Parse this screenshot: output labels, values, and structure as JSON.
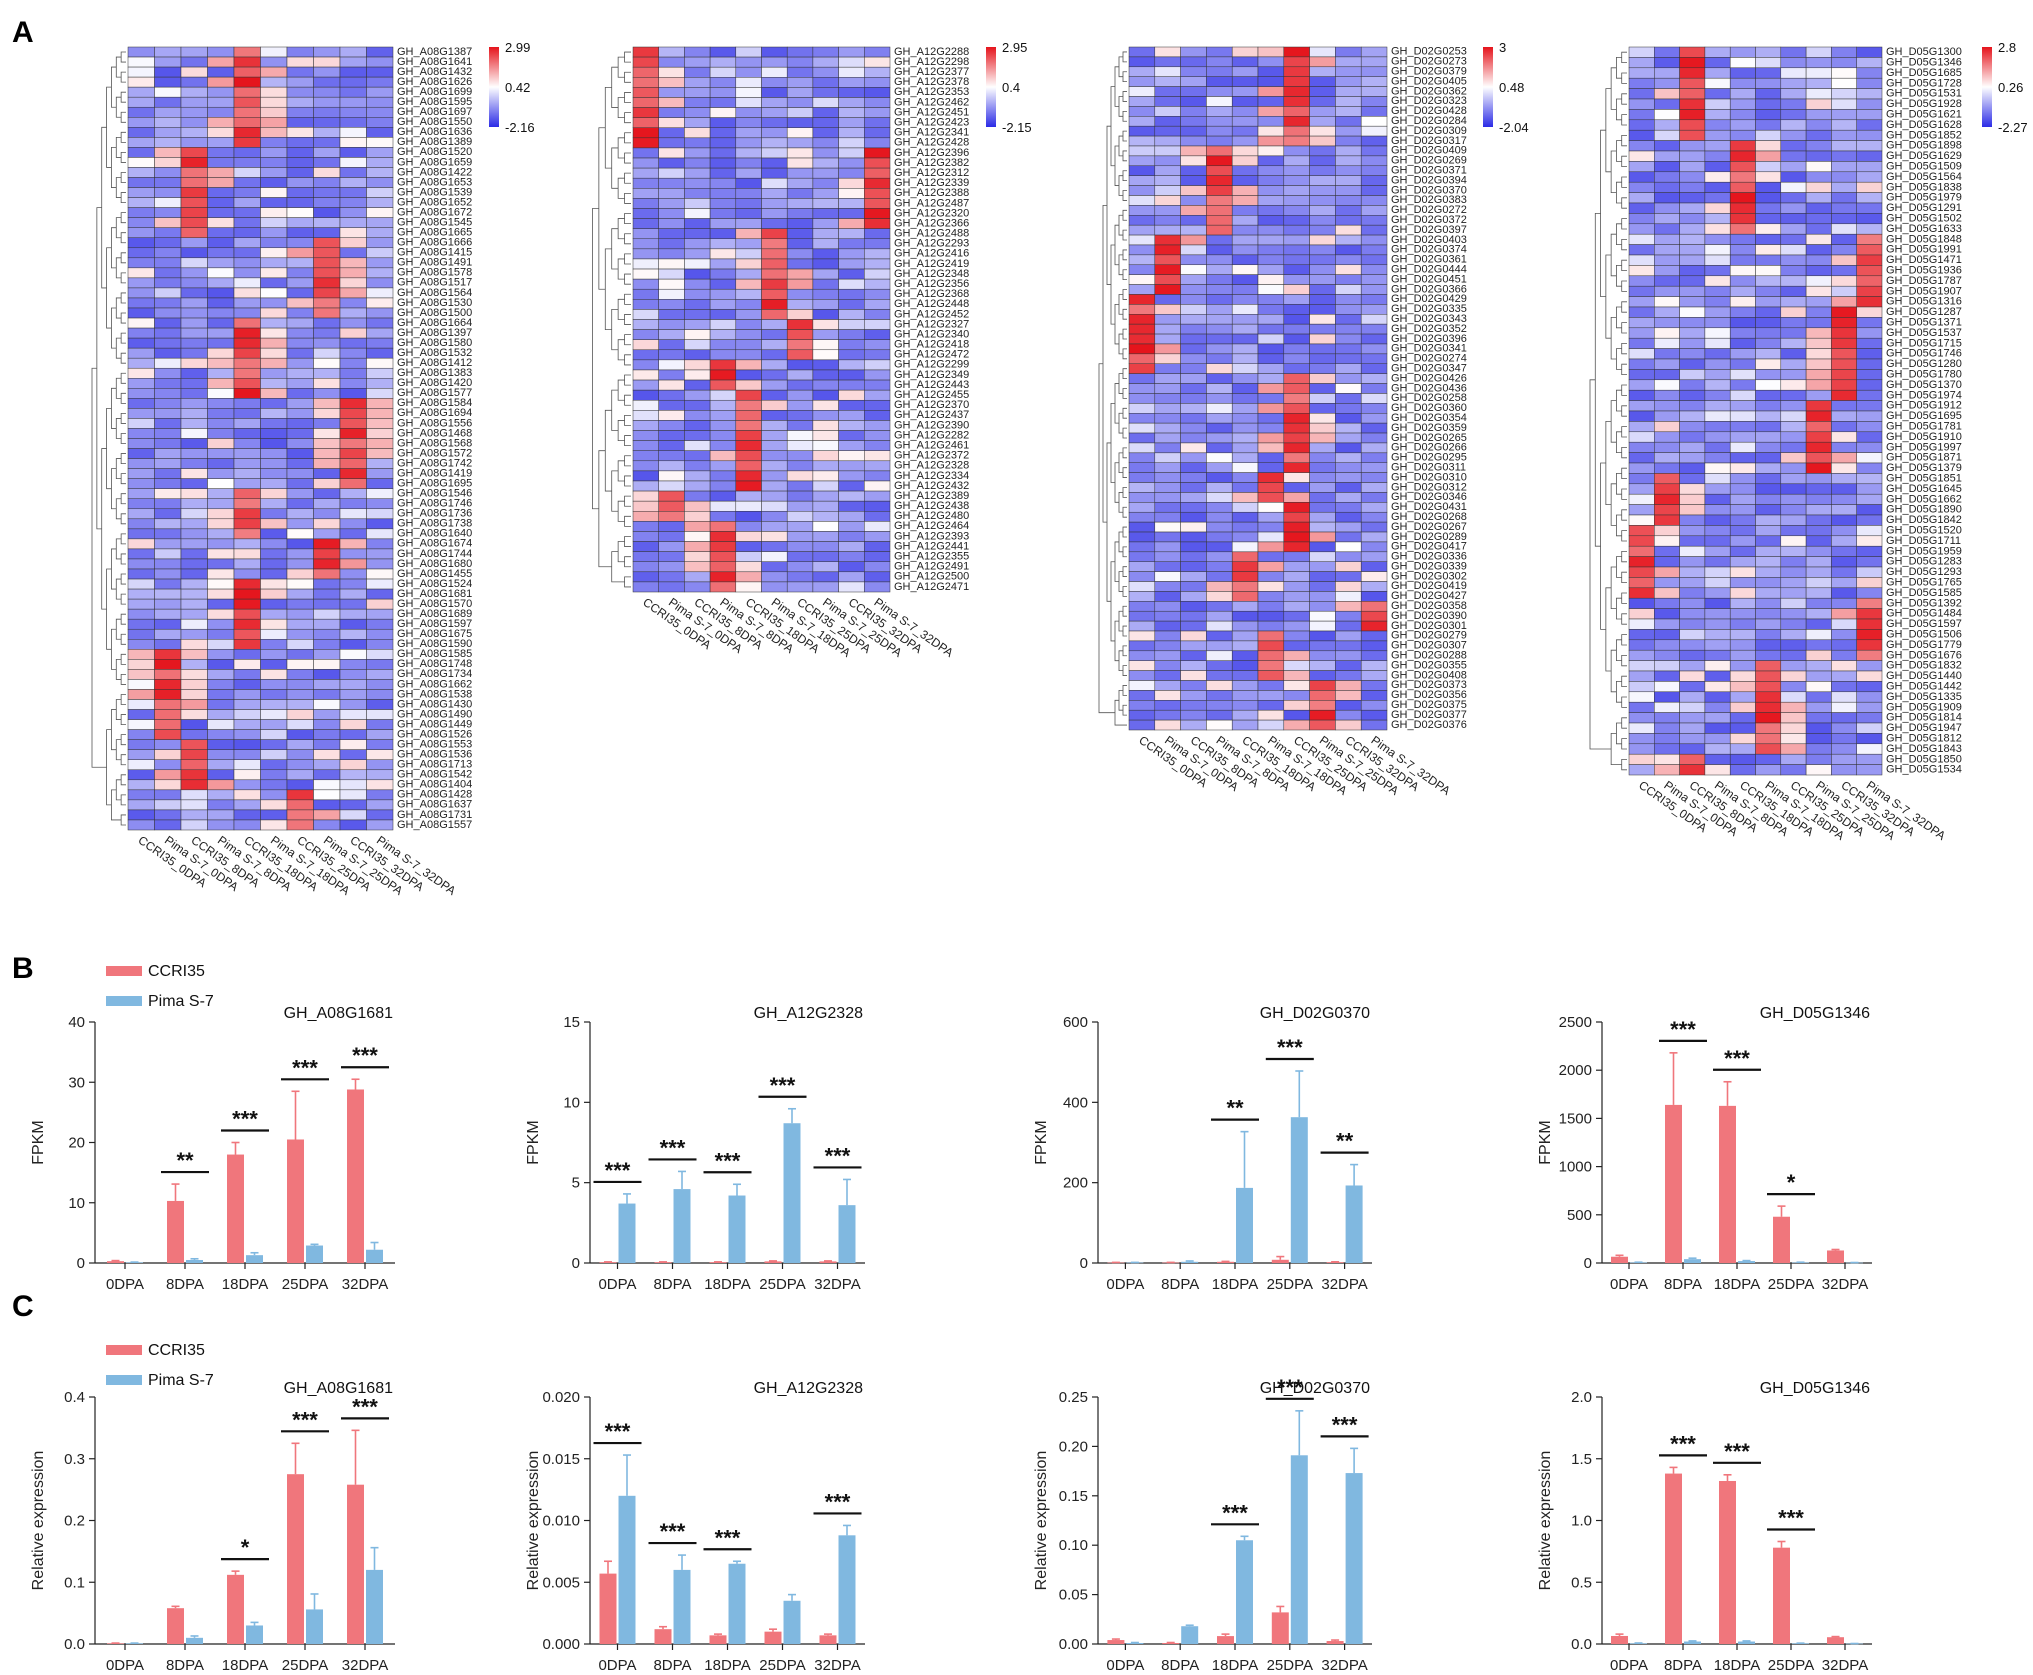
{
  "figure": {
    "panels": [
      "A",
      "B",
      "C"
    ]
  },
  "colors": {
    "ccri35": "#f0767c",
    "pima": "#80b8e0",
    "heat_low": "#2b2be6",
    "heat_mid": "#ffffff",
    "heat_high": "#e5141c"
  },
  "legend": {
    "ccri35": "CCRI35",
    "pima": "Pima S-7"
  },
  "conditions": [
    "CCRI35_0DPA",
    "Pima S-7_0DPA",
    "CCRI35_8DPA",
    "Pima S-7_8DPA",
    "CCRI35_18DPA",
    "Pima S-7_18DPA",
    "CCRI35_25DPA",
    "Pima S-7_25DPA",
    "CCRI35_32DPA",
    "Pima S-7_32DPA"
  ],
  "heatmaps": [
    {
      "scale": {
        "max": "2.99",
        "mid": "0.42",
        "min": "-2.16"
      },
      "genes": [
        "GH_A08G1387",
        "GH_A08G1641",
        "GH_A08G1432",
        "GH_A08G1626",
        "GH_A08G1699",
        "GH_A08G1595",
        "GH_A08G1697",
        "GH_A08G1550",
        "GH_A08G1636",
        "GH_A08G1389",
        "GH_A08G1520",
        "GH_A08G1659",
        "GH_A08G1422",
        "GH_A08G1653",
        "GH_A08G1539",
        "GH_A08G1652",
        "GH_A08G1672",
        "GH_A08G1545",
        "GH_A08G1665",
        "GH_A08G1666",
        "GH_A08G1415",
        "GH_A08G1491",
        "GH_A08G1578",
        "GH_A08G1517",
        "GH_A08G1564",
        "GH_A08G1530",
        "GH_A08G1500",
        "GH_A08G1664",
        "GH_A08G1397",
        "GH_A08G1580",
        "GH_A08G1532",
        "GH_A08G1412",
        "GH_A08G1383",
        "GH_A08G1420",
        "GH_A08G1577",
        "GH_A08G1584",
        "GH_A08G1694",
        "GH_A08G1556",
        "GH_A08G1468",
        "GH_A08G1568",
        "GH_A08G1572",
        "GH_A08G1742",
        "GH_A08G1419",
        "GH_A08G1695",
        "GH_A08G1546",
        "GH_A08G1746",
        "GH_A08G1736",
        "GH_A08G1738",
        "GH_A08G1640",
        "GH_A08G1674",
        "GH_A08G1744",
        "GH_A08G1680",
        "GH_A08G1455",
        "GH_A08G1524",
        "GH_A08G1681",
        "GH_A08G1570",
        "GH_A08G1689",
        "GH_A08G1597",
        "GH_A08G1675",
        "GH_A08G1590",
        "GH_A08G1585",
        "GH_A08G1748",
        "GH_A08G1734",
        "GH_A08G1662",
        "GH_A08G1538",
        "GH_A08G1430",
        "GH_A08G1490",
        "GH_A08G1449",
        "GH_A08G1526",
        "GH_A08G1553",
        "GH_A08G1536",
        "GH_A08G1713",
        "GH_A08G1542",
        "GH_A08G1404",
        "GH_A08G1428",
        "GH_A08G1637",
        "GH_A08G1731",
        "GH_A08G1557"
      ]
    },
    {
      "scale": {
        "max": "2.95",
        "mid": "0.4",
        "min": "-2.15"
      },
      "genes": [
        "GH_A12G2288",
        "GH_A12G2298",
        "GH_A12G2377",
        "GH_A12G2378",
        "GH_A12G2353",
        "GH_A12G2462",
        "GH_A12G2451",
        "GH_A12G2423",
        "GH_A12G2341",
        "GH_A12G2428",
        "GH_A12G2396",
        "GH_A12G2382",
        "GH_A12G2312",
        "GH_A12G2339",
        "GH_A12G2388",
        "GH_A12G2487",
        "GH_A12G2320",
        "GH_A12G2366",
        "GH_A12G2488",
        "GH_A12G2293",
        "GH_A12G2416",
        "GH_A12G2419",
        "GH_A12G2348",
        "GH_A12G2356",
        "GH_A12G2368",
        "GH_A12G2448",
        "GH_A12G2452",
        "GH_A12G2327",
        "GH_A12G2340",
        "GH_A12G2418",
        "GH_A12G2472",
        "GH_A12G2299",
        "GH_A12G2349",
        "GH_A12G2443",
        "GH_A12G2455",
        "GH_A12G2370",
        "GH_A12G2437",
        "GH_A12G2390",
        "GH_A12G2282",
        "GH_A12G2461",
        "GH_A12G2372",
        "GH_A12G2328",
        "GH_A12G2334",
        "GH_A12G2432",
        "GH_A12G2389",
        "GH_A12G2438",
        "GH_A12G2480",
        "GH_A12G2464",
        "GH_A12G2393",
        "GH_A12G2441",
        "GH_A12G2355",
        "GH_A12G2491",
        "GH_A12G2500",
        "GH_A12G2471"
      ]
    },
    {
      "scale": {
        "max": "3",
        "mid": "0.48",
        "min": "-2.04"
      },
      "genes": [
        "GH_D02G0253",
        "GH_D02G0273",
        "GH_D02G0379",
        "GH_D02G0405",
        "GH_D02G0362",
        "GH_D02G0323",
        "GH_D02G0428",
        "GH_D02G0284",
        "GH_D02G0309",
        "GH_D02G0317",
        "GH_D02G0409",
        "GH_D02G0269",
        "GH_D02G0371",
        "GH_D02G0394",
        "GH_D02G0370",
        "GH_D02G0383",
        "GH_D02G0272",
        "GH_D02G0372",
        "GH_D02G0397",
        "GH_D02G0403",
        "GH_D02G0374",
        "GH_D02G0361",
        "GH_D02G0444",
        "GH_D02G0451",
        "GH_D02G0366",
        "GH_D02G0429",
        "GH_D02G0335",
        "GH_D02G0343",
        "GH_D02G0352",
        "GH_D02G0396",
        "GH_D02G0341",
        "GH_D02G0274",
        "GH_D02G0347",
        "GH_D02G0426",
        "GH_D02G0436",
        "GH_D02G0258",
        "GH_D02G0360",
        "GH_D02G0354",
        "GH_D02G0359",
        "GH_D02G0265",
        "GH_D02G0266",
        "GH_D02G0295",
        "GH_D02G0311",
        "GH_D02G0310",
        "GH_D02G0312",
        "GH_D02G0346",
        "GH_D02G0431",
        "GH_D02G0268",
        "GH_D02G0267",
        "GH_D02G0289",
        "GH_D02G0417",
        "GH_D02G0336",
        "GH_D02G0339",
        "GH_D02G0302",
        "GH_D02G0419",
        "GH_D02G0427",
        "GH_D02G0358",
        "GH_D02G0390",
        "GH_D02G0301",
        "GH_D02G0279",
        "GH_D02G0307",
        "GH_D02G0288",
        "GH_D02G0355",
        "GH_D02G0408",
        "GH_D02G0373",
        "GH_D02G0356",
        "GH_D02G0375",
        "GH_D02G0377",
        "GH_D02G0376"
      ]
    },
    {
      "scale": {
        "max": "2.8",
        "mid": "0.26",
        "min": "-2.27"
      },
      "genes": [
        "GH_D05G1300",
        "GH_D05G1346",
        "GH_D05G1685",
        "GH_D05G1728",
        "GH_D05G1531",
        "GH_D05G1928",
        "GH_D05G1621",
        "GH_D05G1628",
        "GH_D05G1852",
        "GH_D05G1898",
        "GH_D05G1629",
        "GH_D05G1509",
        "GH_D05G1564",
        "GH_D05G1838",
        "GH_D05G1979",
        "GH_D05G1291",
        "GH_D05G1502",
        "GH_D05G1633",
        "GH_D05G1848",
        "GH_D05G1991",
        "GH_D05G1471",
        "GH_D05G1936",
        "GH_D05G1787",
        "GH_D05G1907",
        "GH_D05G1316",
        "GH_D05G1287",
        "GH_D05G1371",
        "GH_D05G1537",
        "GH_D05G1715",
        "GH_D05G1746",
        "GH_D05G1280",
        "GH_D05G1780",
        "GH_D05G1370",
        "GH_D05G1974",
        "GH_D05G1912",
        "GH_D05G1695",
        "GH_D05G1781",
        "GH_D05G1910",
        "GH_D05G1997",
        "GH_D05G1871",
        "GH_D05G1379",
        "GH_D05G1851",
        "GH_D05G1645",
        "GH_D05G1662",
        "GH_D05G1890",
        "GH_D05G1842",
        "GH_D05G1520",
        "GH_D05G1711",
        "GH_D05G1959",
        "GH_D05G1283",
        "GH_D05G1293",
        "GH_D05G1765",
        "GH_D05G1585",
        "GH_D05G1392",
        "GH_D05G1484",
        "GH_D05G1597",
        "GH_D05G1506",
        "GH_D05G1779",
        "GH_D05G1676",
        "GH_D05G1832",
        "GH_D05G1440",
        "GH_D05G1442",
        "GH_D05G1335",
        "GH_D05G1909",
        "GH_D05G1814",
        "GH_D05G1947",
        "GH_D05G1812",
        "GH_D05G1843",
        "GH_D05G1850",
        "GH_D05G1534"
      ]
    }
  ],
  "chart_data": [
    {
      "id": "B1",
      "type": "bar",
      "title": "GH_A08G1681",
      "ylabel": "FPKM",
      "categories": [
        "0DPA",
        "8DPA",
        "18DPA",
        "25DPA",
        "32DPA"
      ],
      "ylim": [
        0,
        40
      ],
      "yticks": [
        "0",
        "10",
        "20",
        "30",
        "40"
      ],
      "series": [
        {
          "name": "CCRI35",
          "values": [
            0.3,
            10.3,
            18.0,
            20.5,
            28.8
          ],
          "errors": [
            0.1,
            2.8,
            2.0,
            8.0,
            1.7
          ]
        },
        {
          "name": "Pima S-7",
          "values": [
            0.1,
            0.5,
            1.3,
            2.9,
            2.2
          ],
          "errors": [
            0.05,
            0.2,
            0.4,
            0.2,
            1.2
          ]
        }
      ],
      "significance": [
        "",
        "**",
        "***",
        "***",
        "***"
      ]
    },
    {
      "id": "B2",
      "type": "bar",
      "title": "GH_A12G2328",
      "ylabel": "FPKM",
      "categories": [
        "0DPA",
        "8DPA",
        "18DPA",
        "25DPA",
        "32DPA"
      ],
      "ylim": [
        0,
        15
      ],
      "yticks": [
        "0",
        "5",
        "10",
        "15"
      ],
      "series": [
        {
          "name": "CCRI35",
          "values": [
            0.05,
            0.05,
            0.05,
            0.1,
            0.1
          ],
          "errors": [
            0.02,
            0.02,
            0.02,
            0.03,
            0.03
          ]
        },
        {
          "name": "Pima S-7",
          "values": [
            3.7,
            4.6,
            4.2,
            8.7,
            3.6
          ],
          "errors": [
            0.6,
            1.1,
            0.7,
            0.9,
            1.6
          ]
        }
      ],
      "significance": [
        "***",
        "***",
        "***",
        "***",
        "***"
      ]
    },
    {
      "id": "B3",
      "type": "bar",
      "title": "GH_D02G0370",
      "ylabel": "FPKM",
      "categories": [
        "0DPA",
        "8DPA",
        "18DPA",
        "25DPA",
        "32DPA"
      ],
      "ylim": [
        0,
        600
      ],
      "yticks": [
        "0",
        "200",
        "400",
        "600"
      ],
      "series": [
        {
          "name": "CCRI35",
          "values": [
            1,
            1,
            3,
            8,
            2
          ],
          "errors": [
            0.5,
            0.5,
            1,
            8,
            1
          ]
        },
        {
          "name": "Pima S-7",
          "values": [
            1,
            3,
            187,
            363,
            193
          ],
          "errors": [
            0.5,
            2,
            140,
            115,
            52
          ]
        }
      ],
      "significance": [
        "",
        "",
        "**",
        "***",
        "**"
      ]
    },
    {
      "id": "B4",
      "type": "bar",
      "title": "GH_D05G1346",
      "ylabel": "FPKM",
      "categories": [
        "0DPA",
        "8DPA",
        "18DPA",
        "25DPA",
        "32DPA"
      ],
      "ylim": [
        0,
        2500
      ],
      "yticks": [
        "0",
        "500",
        "1000",
        "1500",
        "2000",
        "2500"
      ],
      "series": [
        {
          "name": "CCRI35",
          "values": [
            65,
            1640,
            1630,
            480,
            130
          ],
          "errors": [
            15,
            540,
            250,
            110,
            10
          ]
        },
        {
          "name": "Pima S-7",
          "values": [
            5,
            40,
            20,
            5,
            3
          ],
          "errors": [
            3,
            10,
            5,
            3,
            2
          ]
        }
      ],
      "significance": [
        "",
        "***",
        "***",
        "*",
        ""
      ]
    },
    {
      "id": "C1",
      "type": "bar",
      "title": "GH_A08G1681",
      "ylabel": "Relative expression",
      "categories": [
        "0DPA",
        "8DPA",
        "18DPA",
        "25DPA",
        "32DPA"
      ],
      "ylim": [
        0,
        0.4
      ],
      "yticks": [
        "0.0",
        "0.1",
        "0.2",
        "0.3",
        "0.4"
      ],
      "series": [
        {
          "name": "CCRI35",
          "values": [
            0.001,
            0.058,
            0.112,
            0.275,
            0.258
          ],
          "errors": [
            0.0005,
            0.003,
            0.006,
            0.05,
            0.088
          ]
        },
        {
          "name": "Pima S-7",
          "values": [
            0.001,
            0.01,
            0.03,
            0.056,
            0.12
          ],
          "errors": [
            0.0005,
            0.003,
            0.005,
            0.025,
            0.036
          ]
        }
      ],
      "significance": [
        "",
        "",
        "*",
        "***",
        "***"
      ]
    },
    {
      "id": "C2",
      "type": "bar",
      "title": "GH_A12G2328",
      "ylabel": "Relative expression",
      "categories": [
        "0DPA",
        "8DPA",
        "18DPA",
        "25DPA",
        "32DPA"
      ],
      "ylim": [
        0,
        0.02
      ],
      "yticks": [
        "0.000",
        "0.005",
        "0.010",
        "0.015",
        "0.020"
      ],
      "series": [
        {
          "name": "CCRI35",
          "values": [
            0.0057,
            0.0012,
            0.0007,
            0.001,
            0.0007
          ],
          "errors": [
            0.001,
            0.0002,
            0.0001,
            0.0002,
            0.0001
          ]
        },
        {
          "name": "Pima S-7",
          "values": [
            0.012,
            0.006,
            0.0065,
            0.0035,
            0.0088
          ],
          "errors": [
            0.0033,
            0.0012,
            0.0002,
            0.0005,
            0.0008
          ]
        }
      ],
      "significance": [
        "***",
        "***",
        "***",
        "",
        "***"
      ]
    },
    {
      "id": "C3",
      "type": "bar",
      "title": "GH_D02G0370",
      "ylabel": "Relative expression",
      "categories": [
        "0DPA",
        "8DPA",
        "18DPA",
        "25DPA",
        "32DPA"
      ],
      "ylim": [
        0,
        0.25
      ],
      "yticks": [
        "0.00",
        "0.05",
        "0.10",
        "0.15",
        "0.20",
        "0.25"
      ],
      "series": [
        {
          "name": "CCRI35",
          "values": [
            0.004,
            0.001,
            0.008,
            0.032,
            0.003
          ],
          "errors": [
            0.001,
            0.0005,
            0.002,
            0.006,
            0.001
          ]
        },
        {
          "name": "Pima S-7",
          "values": [
            0.001,
            0.018,
            0.105,
            0.191,
            0.173
          ],
          "errors": [
            0.0005,
            0.001,
            0.004,
            0.045,
            0.025
          ]
        }
      ],
      "significance": [
        "",
        "",
        "***",
        "***",
        "***"
      ]
    },
    {
      "id": "C4",
      "type": "bar",
      "title": "GH_D05G1346",
      "ylabel": "Relative expression",
      "categories": [
        "0DPA",
        "8DPA",
        "18DPA",
        "25DPA",
        "32DPA"
      ],
      "ylim": [
        0,
        2
      ],
      "yticks": [
        "0.0",
        "0.5",
        "1.0",
        "1.5",
        "2.0"
      ],
      "series": [
        {
          "name": "CCRI35",
          "values": [
            0.065,
            1.38,
            1.32,
            0.78,
            0.055
          ],
          "errors": [
            0.015,
            0.05,
            0.05,
            0.05,
            0.005
          ]
        },
        {
          "name": "Pima S-7",
          "values": [
            0.005,
            0.02,
            0.02,
            0.005,
            0.003
          ],
          "errors": [
            0.003,
            0.005,
            0.005,
            0.002,
            0.001
          ]
        }
      ],
      "significance": [
        "",
        "***",
        "***",
        "***",
        ""
      ]
    }
  ]
}
